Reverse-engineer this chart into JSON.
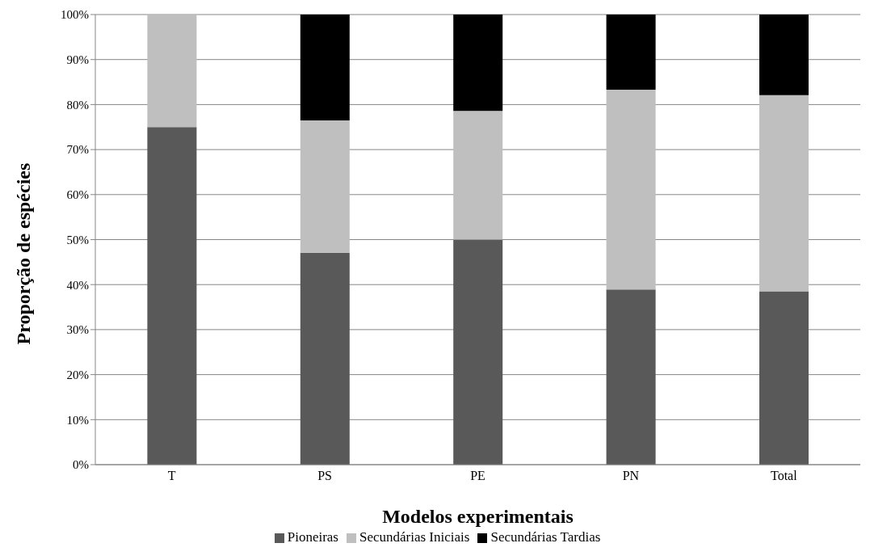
{
  "chart_data": {
    "type": "bar",
    "stacked": true,
    "xlabel": "Modelos experimentais",
    "ylabel": "Proporção de espécies",
    "categories": [
      "T",
      "PS",
      "PE",
      "PN",
      "Total"
    ],
    "series": [
      {
        "name": "Pioneiras",
        "color": "#595959",
        "values": [
          75,
          47.1,
          50,
          38.9,
          38.5
        ]
      },
      {
        "name": "Secundárias Iniciais",
        "color": "#bfbfbf",
        "values": [
          25,
          29.4,
          28.6,
          44.4,
          43.6
        ]
      },
      {
        "name": "Secundárias Tardias",
        "color": "#000000",
        "values": [
          0,
          23.5,
          21.4,
          16.7,
          17.9
        ]
      }
    ],
    "ylim": [
      0,
      100
    ],
    "yticks": [
      {
        "value": 0,
        "label": "0%"
      },
      {
        "value": 10,
        "label": "10%"
      },
      {
        "value": 20,
        "label": "20%"
      },
      {
        "value": 30,
        "label": "30%"
      },
      {
        "value": 40,
        "label": "40%"
      },
      {
        "value": 50,
        "label": "50%"
      },
      {
        "value": 60,
        "label": "60%"
      },
      {
        "value": 70,
        "label": "70%"
      },
      {
        "value": 80,
        "label": "80%"
      },
      {
        "value": 90,
        "label": "90%"
      },
      {
        "value": 100,
        "label": "100%"
      }
    ],
    "grid": "y",
    "legend": "bottom"
  }
}
